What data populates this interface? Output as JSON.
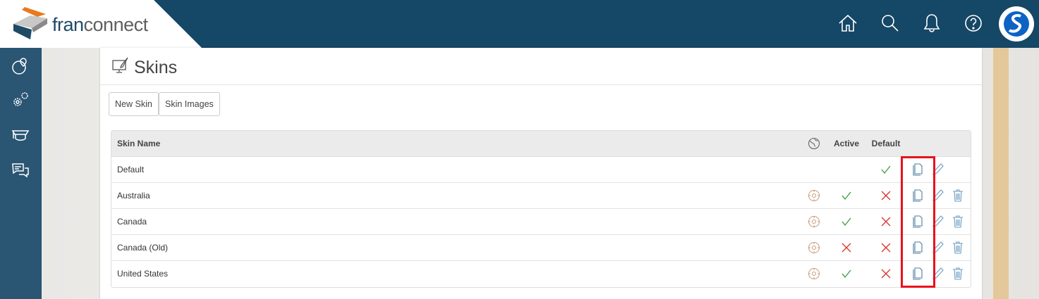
{
  "header": {
    "logo_text_1": "fran",
    "logo_text_2": "connect",
    "icons": [
      "home-icon",
      "search-icon",
      "bell-icon",
      "help-icon",
      "user-avatar"
    ]
  },
  "sidebar": {
    "icons": [
      "globe-pin-icon",
      "gears-icon",
      "training-icon",
      "chat-icon"
    ]
  },
  "page": {
    "title": "Skins",
    "buttons": {
      "new_skin": "New Skin",
      "skin_images": "Skin Images"
    }
  },
  "table": {
    "headers": {
      "name": "Skin Name",
      "region": "globe-icon",
      "active": "Active",
      "default": "Default"
    },
    "rows": [
      {
        "name": "Default",
        "region_icon": false,
        "active": null,
        "default": true,
        "deletable": false
      },
      {
        "name": "Australia",
        "region_icon": true,
        "active": true,
        "default": false,
        "deletable": true
      },
      {
        "name": "Canada",
        "region_icon": true,
        "active": true,
        "default": false,
        "deletable": true
      },
      {
        "name": "Canada (Old)",
        "region_icon": true,
        "active": false,
        "default": false,
        "deletable": true
      },
      {
        "name": "United States",
        "region_icon": true,
        "active": true,
        "default": false,
        "deletable": true
      }
    ]
  },
  "colors": {
    "header": "#154766",
    "sidebar": "#2a5573",
    "check": "#3a9a3a",
    "cross": "#d9342b",
    "highlight": "#e8121c",
    "icon": "#5b8fb0"
  }
}
